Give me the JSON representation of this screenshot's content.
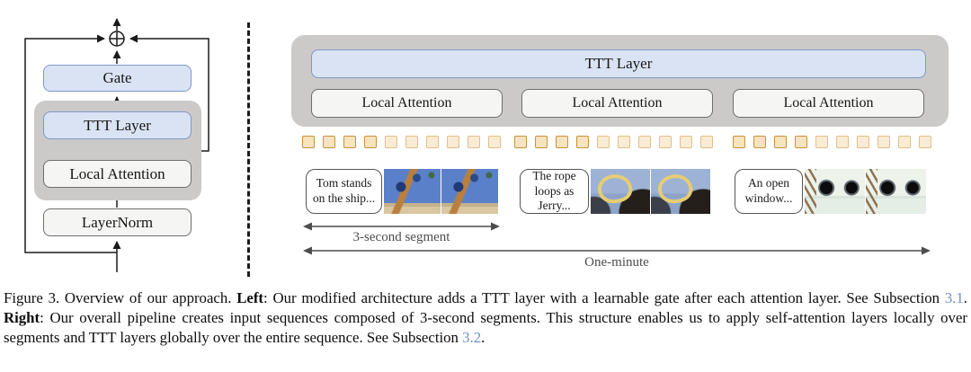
{
  "figure": {
    "left_panel": {
      "boxes": {
        "gate": "Gate",
        "ttt_layer": "TTT Layer",
        "local_attention": "Local Attention",
        "layernorm": "LayerNorm"
      }
    },
    "right_panel": {
      "ttt_layer": "TTT Layer",
      "local_attention": [
        "Local Attention",
        "Local Attention",
        "Local Attention"
      ],
      "tokens": {
        "segments": 3,
        "per_segment": 10,
        "dark_count": 4,
        "fill_dark": "#f7e3bd",
        "border_dark": "#c6933b",
        "fill_light": "#faecd2",
        "border_light": "#ddbf8d"
      },
      "segments_media": [
        {
          "caption": "Tom stands on the ship...",
          "scene": "ship-masts-frames"
        },
        {
          "caption": "The rope loops as Jerry...",
          "scene": "rope-loop-frames"
        },
        {
          "caption": "An open window...",
          "scene": "porthole-frames"
        }
      ],
      "segment_arrow_label": "3-second segment",
      "minute_arrow_label": "One-minute"
    },
    "caption": {
      "p1": "Figure 3. Overview of our approach. ",
      "bold1": "Left",
      "p2": ": Our modified architecture adds a TTT layer with a learnable gate after each attention layer. See Subsection ",
      "link1": "3.1",
      "p3": ". ",
      "bold2": "Right",
      "p4": ": Our overall pipeline creates input sequences composed of 3-second segments. This structure enables us to apply self-attention layers locally over segments and TTT layers globally over the entire sequence. See Subsection ",
      "link2": "3.2",
      "p5": "."
    },
    "colors": {
      "box_blue_fill": "#dae3f3",
      "box_blue_border": "#8097c8",
      "box_gray_fill": "#f5f5f4",
      "box_gray_border": "#6e6e6e",
      "region_gray": "#cbcac9",
      "arrow_black": "#1a1a1a",
      "arrow_gray": "#4d4d4d",
      "link_blue": "#6e90c8"
    }
  }
}
